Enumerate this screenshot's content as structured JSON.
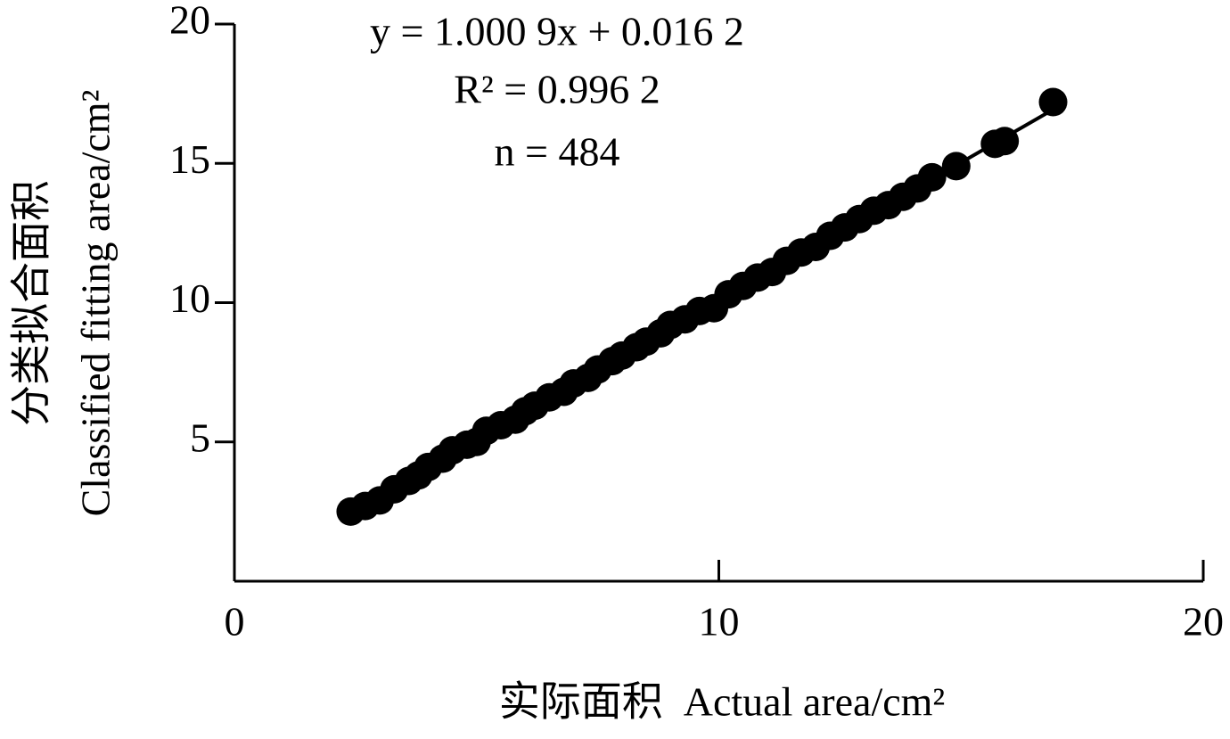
{
  "chart_data": {
    "type": "scatter",
    "annotations": [
      "y = 1.000 9x + 0.016 2",
      "R² = 0.996 2",
      "n = 484"
    ],
    "xlabel": "实际面积  Actual area/cm²",
    "ylabel": [
      "分类拟合面积",
      "Classified fitting area/cm²"
    ],
    "color": "#000000",
    "trendline": {
      "slope": 1.0009,
      "intercept": 0.0162
    },
    "xlim": [
      0,
      20
    ],
    "xticks": [
      0,
      10,
      20
    ],
    "ylim": [
      0,
      20
    ],
    "yticks": [
      5,
      10,
      15,
      20
    ],
    "x": [
      2.4,
      2.7,
      3.0,
      3.3,
      3.6,
      3.8,
      4.0,
      4.3,
      4.5,
      4.8,
      5.0,
      5.2,
      5.5,
      5.8,
      6.0,
      6.2,
      6.5,
      6.8,
      7.0,
      7.3,
      7.5,
      7.8,
      8.0,
      8.3,
      8.5,
      8.8,
      9.0,
      9.3,
      9.6,
      9.9,
      10.2,
      10.5,
      10.8,
      11.1,
      11.4,
      11.7,
      12.0,
      12.3,
      12.6,
      12.9,
      13.2,
      13.5,
      13.8,
      14.1,
      14.4,
      14.9,
      15.7,
      15.9,
      16.9
    ],
    "values": [
      2.5,
      2.7,
      2.9,
      3.3,
      3.6,
      3.8,
      4.1,
      4.4,
      4.7,
      4.9,
      5.0,
      5.4,
      5.6,
      5.8,
      6.1,
      6.3,
      6.6,
      6.8,
      7.1,
      7.3,
      7.6,
      7.9,
      8.1,
      8.4,
      8.6,
      8.9,
      9.2,
      9.4,
      9.7,
      9.8,
      10.3,
      10.6,
      10.9,
      11.1,
      11.5,
      11.8,
      12.0,
      12.4,
      12.7,
      13.0,
      13.3,
      13.5,
      13.8,
      14.1,
      14.5,
      14.9,
      15.7,
      15.8,
      17.2
    ]
  }
}
